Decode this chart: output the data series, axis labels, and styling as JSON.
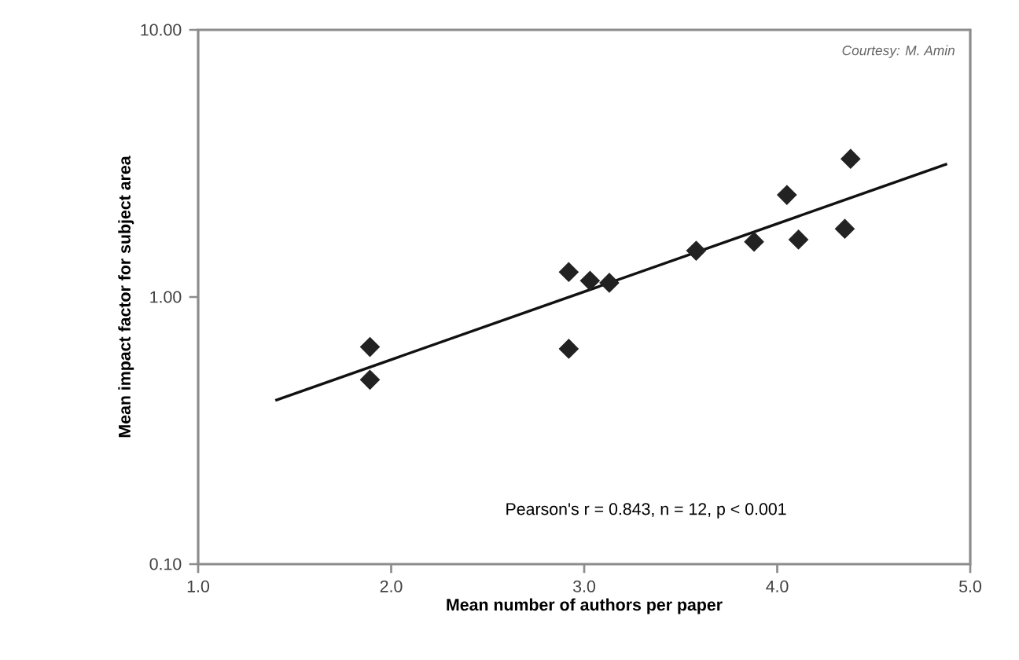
{
  "chart_data": {
    "type": "scatter",
    "xlabel": "Mean number of authors per paper",
    "ylabel": "Mean impact factor for subject area",
    "log": "y",
    "marker": "diamond",
    "xlim": [
      1.0,
      5.0
    ],
    "ylim": [
      0.1,
      10
    ],
    "xticks": [
      {
        "value": 1,
        "label": "1.0"
      },
      {
        "value": 2,
        "label": "2.0"
      },
      {
        "value": 3,
        "label": "3.0"
      },
      {
        "value": 4,
        "label": "4.0"
      },
      {
        "value": 5,
        "label": "5.0"
      }
    ],
    "yticks": [
      {
        "value": 0.1,
        "label": "0.10"
      },
      {
        "value": 1,
        "label": "1.00"
      },
      {
        "value": 10,
        "label": "10.00"
      }
    ],
    "annotations": [
      "Courtesy: M. Amin",
      "Pearson's r = 0.843, n = 12, p < 0.001"
    ],
    "series": [
      {
        "color": "#222222",
        "x": [
          1.89,
          1.89,
          2.92,
          2.92,
          3.03,
          3.13,
          3.58,
          3.88,
          4.05,
          4.11,
          4.35,
          4.38
        ],
        "values": [
          0.65,
          0.49,
          1.24,
          0.64,
          1.15,
          1.13,
          1.49,
          1.61,
          2.41,
          1.64,
          1.8,
          3.29
        ]
      },
      {
        "type": "line",
        "color": "#111111",
        "marker": "none",
        "x": [
          1.4,
          4.88
        ],
        "values": [
          0.41,
          3.15
        ]
      }
    ]
  }
}
